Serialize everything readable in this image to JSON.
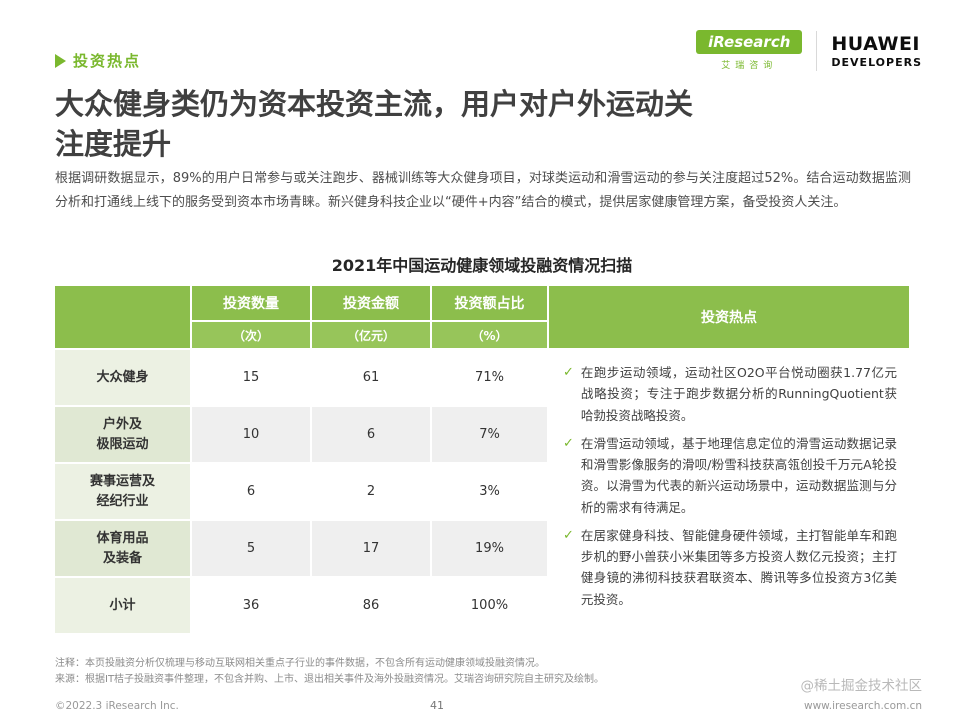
{
  "page": {
    "section_label": "投资热点",
    "title_line1": "大众健身类仍为资本投资主流，用户对户外运动关",
    "title_line2": "注度提升",
    "intro": "根据调研数据显示，89%的用户日常参与或关注跑步、器械训练等大众健身项目，对球类运动和滑雪运动的参与关注度超过52%。结合运动数据监测分析和打通线上线下的服务受到资本市场青睐。新兴健身科技企业以“硬件+内容”结合的模式，提供居家健康管理方案，备受投资人关注。"
  },
  "logos": {
    "iresearch_name": "iResearch",
    "iresearch_cn": "艾瑞咨询",
    "huawei_name": "HUAWEI",
    "huawei_sub": "DEVELOPERS"
  },
  "table": {
    "title": "2021年中国运动健康领域投融资情况扫描",
    "headers": {
      "count": "投资数量",
      "amount": "投资金额",
      "share": "投资额占比",
      "hotspot": "投资热点"
    },
    "subheaders": {
      "count": "（次）",
      "amount": "（亿元）",
      "share": "（%）"
    },
    "rows": [
      {
        "label": "大众健身",
        "count": "15",
        "amount": "61",
        "share": "71%"
      },
      {
        "label": "户外及\n极限运动",
        "count": "10",
        "amount": "6",
        "share": "7%"
      },
      {
        "label": "赛事运营及\n经纪行业",
        "count": "6",
        "amount": "2",
        "share": "3%"
      },
      {
        "label": "体育用品\n及装备",
        "count": "5",
        "amount": "17",
        "share": "19%"
      },
      {
        "label": "小计",
        "count": "36",
        "amount": "86",
        "share": "100%"
      }
    ],
    "check_glyph": "✓",
    "hotspots": [
      "在跑步运动领域，运动社区O2O平台悦动圈获1.77亿元战略投资；专注于跑步数据分析的RunningQuotient获哈勃投资战略投资。",
      "在滑雪运动领域，基于地理信息定位的滑雪运动数据记录和滑雪影像服务的滑呗/粉雪科技获高瓴创投千万元A轮投资。以滑雪为代表的新兴运动场景中，运动数据监测与分析的需求有待满足。",
      "在居家健身科技、智能健身硬件领域，主打智能单车和跑步机的野小兽获小米集团等多方投资人数亿元投资；主打健身镜的沸彻科技获君联资本、腾讯等多位投资方3亿美元投资。"
    ]
  },
  "footnotes": {
    "note1": "注释：本页投融资分析仅梳理与移动互联网相关重点子行业的事件数据，不包含所有运动健康领域投融资情况。",
    "note2": "来源：根据IT桔子投融资事件整理，不包含并购、上市、退出相关事件及海外投融资情况。艾瑞咨询研究院自主研究及绘制。"
  },
  "footer": {
    "copyright": "©2022.3 iResearch Inc.",
    "page_number": "41",
    "watermark": "@稀土掘金技术社区",
    "website": "www.iresearch.com.cn"
  },
  "colors": {
    "accent_green": "#7ab82e",
    "table_header_green": "#8cbe4c",
    "table_subheader_green": "#97c55a"
  }
}
